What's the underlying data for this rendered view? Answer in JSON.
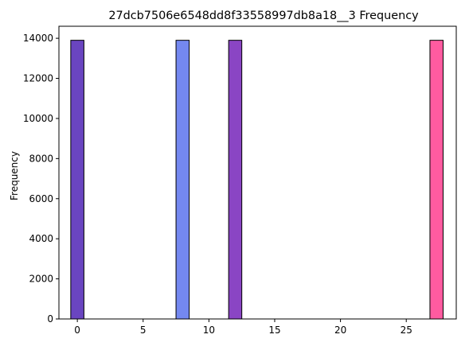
{
  "chart_data": {
    "type": "bar",
    "title": "27dcb7506e6548dd8f33558997db8a18__3 Frequency",
    "xlabel": "",
    "ylabel": "Frequency",
    "xlim": [
      -1.4,
      28.8
    ],
    "ylim": [
      0,
      14600
    ],
    "xticks": [
      0,
      5,
      10,
      15,
      20,
      25
    ],
    "yticks": [
      0,
      2000,
      4000,
      6000,
      8000,
      10000,
      12000,
      14000
    ],
    "bin_width": 1.0,
    "grid": false,
    "bars": [
      {
        "x": 0,
        "value": 13900,
        "color": "#6a45c0"
      },
      {
        "x": 8,
        "value": 13900,
        "color": "#7488f0"
      },
      {
        "x": 12,
        "value": 13900,
        "color": "#8a45c4"
      },
      {
        "x": 27.3,
        "value": 13900,
        "color": "#ff5ba0"
      }
    ],
    "edge_color": "#000000"
  }
}
